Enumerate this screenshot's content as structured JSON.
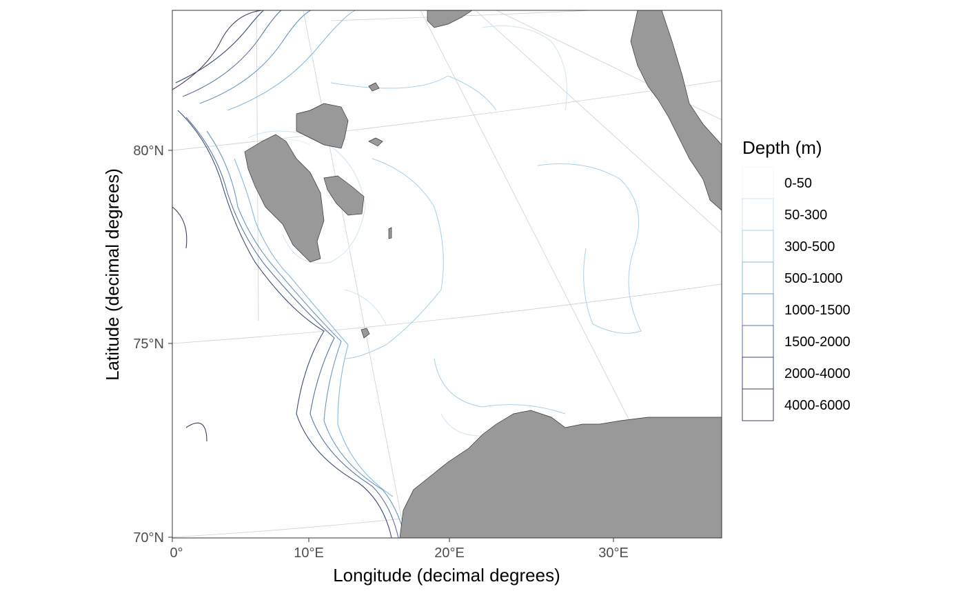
{
  "chart_data": {
    "type": "map",
    "projection": "polar stereographic",
    "xlabel": "Longitude (decimal degrees)",
    "ylabel": "Latitude (decimal degrees)",
    "x_ticks": [
      "0°",
      "10°E",
      "20°E",
      "30°E"
    ],
    "y_ticks": [
      "70°N",
      "75°N",
      "80°N"
    ],
    "legend": {
      "title": "Depth (m)",
      "placement": "right",
      "entries": [
        {
          "label": "0-50",
          "color": "#f0f6fb"
        },
        {
          "label": "50-300",
          "color": "#cfe4f1"
        },
        {
          "label": "300-500",
          "color": "#a9d0e6"
        },
        {
          "label": "500-1000",
          "color": "#86b9da"
        },
        {
          "label": "1000-1500",
          "color": "#6a98c4"
        },
        {
          "label": "1500-2000",
          "color": "#56729f"
        },
        {
          "label": "2000-4000",
          "color": "#3b4b78"
        },
        {
          "label": "4000-6000",
          "color": "#4a3a5c"
        }
      ]
    },
    "land_color": "#999999",
    "graticule_color": "#cfcfcf",
    "grid": true
  }
}
